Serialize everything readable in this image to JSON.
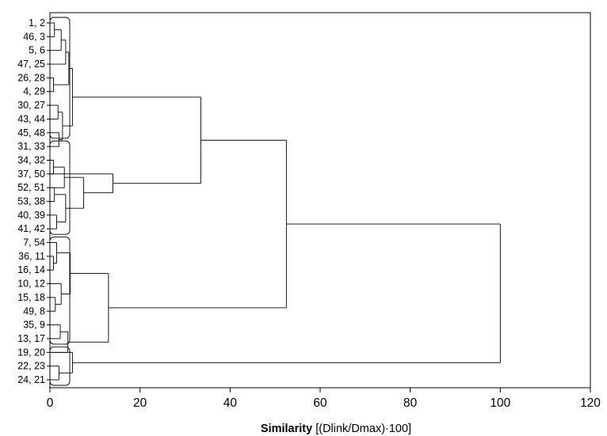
{
  "chart_data": {
    "type": "dendrogram",
    "orientation": "horizontal",
    "xlabel_bold": "Similarity",
    "xlabel_rest": " [(Dlink/Dmax)·100]",
    "xlim": [
      0,
      120
    ],
    "xticks": [
      0,
      20,
      40,
      60,
      80,
      100,
      120
    ],
    "leaf_labels": [
      "1,  2",
      "46,  3",
      "5,  6",
      "47, 25",
      "26, 28",
      "4, 29",
      "30, 27",
      "43, 44",
      "45, 48",
      "31, 33",
      "34, 32",
      "37, 50",
      "52, 51",
      "53, 38",
      "40, 39",
      "41, 42",
      "7, 54",
      "36, 11",
      "16, 14",
      "10, 12",
      "15, 18",
      "49,  8",
      "35,  9",
      "13, 17",
      "19, 20",
      "22, 23",
      "24, 21"
    ],
    "leaf_items": [
      [
        1,
        2
      ],
      [
        46,
        3
      ],
      [
        5,
        6
      ],
      [
        47,
        25
      ],
      [
        26,
        28
      ],
      [
        4,
        29
      ],
      [
        30,
        27
      ],
      [
        43,
        44
      ],
      [
        45,
        48
      ],
      [
        31,
        33
      ],
      [
        34,
        32
      ],
      [
        37,
        50
      ],
      [
        52,
        51
      ],
      [
        53,
        38
      ],
      [
        40,
        39
      ],
      [
        41,
        42
      ],
      [
        7,
        54
      ],
      [
        36,
        11
      ],
      [
        16,
        14
      ],
      [
        10,
        12
      ],
      [
        15,
        18
      ],
      [
        49,
        8
      ],
      [
        35,
        9
      ],
      [
        13,
        17
      ],
      [
        19,
        20
      ],
      [
        22,
        23
      ],
      [
        24,
        21
      ]
    ],
    "merges": [
      {
        "children": [
          "L4",
          "L5"
        ],
        "similarity": 0.8
      },
      {
        "children": [
          "L10",
          "L11"
        ],
        "similarity": 0.8
      },
      {
        "children": [
          "L17",
          "L18"
        ],
        "similarity": 0.8
      },
      {
        "children": [
          "L0",
          "L1"
        ],
        "similarity": 1.0
      },
      {
        "children": [
          "L12",
          "L13"
        ],
        "similarity": 1.0
      },
      {
        "children": [
          "L20",
          "L21"
        ],
        "similarity": 1.2
      },
      {
        "children": [
          "L14",
          "L15"
        ],
        "similarity": 1.5
      },
      {
        "children": [
          "L16",
          "M2"
        ],
        "similarity": 1.5
      },
      {
        "children": [
          "L6",
          "L7"
        ],
        "similarity": 1.8
      },
      {
        "children": [
          "L8",
          "L9"
        ],
        "similarity": 2.0
      },
      {
        "children": [
          "L25",
          "L26"
        ],
        "similarity": 2.0
      },
      {
        "children": [
          "L22",
          "L23"
        ],
        "similarity": 2.3
      },
      {
        "children": [
          "M3",
          "L2"
        ],
        "similarity": 2.5
      },
      {
        "children": [
          "L19",
          "M5"
        ],
        "similarity": 2.5
      },
      {
        "children": [
          "M8",
          "M9"
        ],
        "similarity": 2.8
      },
      {
        "children": [
          "M1",
          "L12"
        ],
        "similarity": 3.2
      },
      {
        "children": [
          "M6",
          "M4"
        ],
        "similarity": 3.5
      },
      {
        "children": [
          "M12",
          "L3"
        ],
        "similarity": 3.5
      },
      {
        "children": [
          "M11",
          "L24"
        ],
        "similarity": 4.0
      },
      {
        "children": [
          "M17",
          "M0"
        ],
        "similarity": 4.2
      },
      {
        "children": [
          "M7",
          "M13"
        ],
        "similarity": 4.5
      },
      {
        "children": [
          "L24",
          "M10"
        ],
        "similarity": 5.0
      },
      {
        "children": [
          "M19",
          "M14"
        ],
        "similarity": 5.0
      },
      {
        "children": [
          "M15",
          "M16"
        ],
        "similarity": 7.5
      },
      {
        "children": [
          "M20",
          "M18"
        ],
        "similarity": 13.0
      },
      {
        "children": [
          "M23",
          "L11"
        ],
        "similarity": 14.0
      },
      {
        "children": [
          "M22",
          "M25"
        ],
        "similarity": 33.5
      },
      {
        "children": [
          "M24",
          "M26"
        ],
        "similarity": 52.5
      },
      {
        "children": [
          "M21",
          "M27"
        ],
        "similarity": 100.0
      }
    ]
  }
}
